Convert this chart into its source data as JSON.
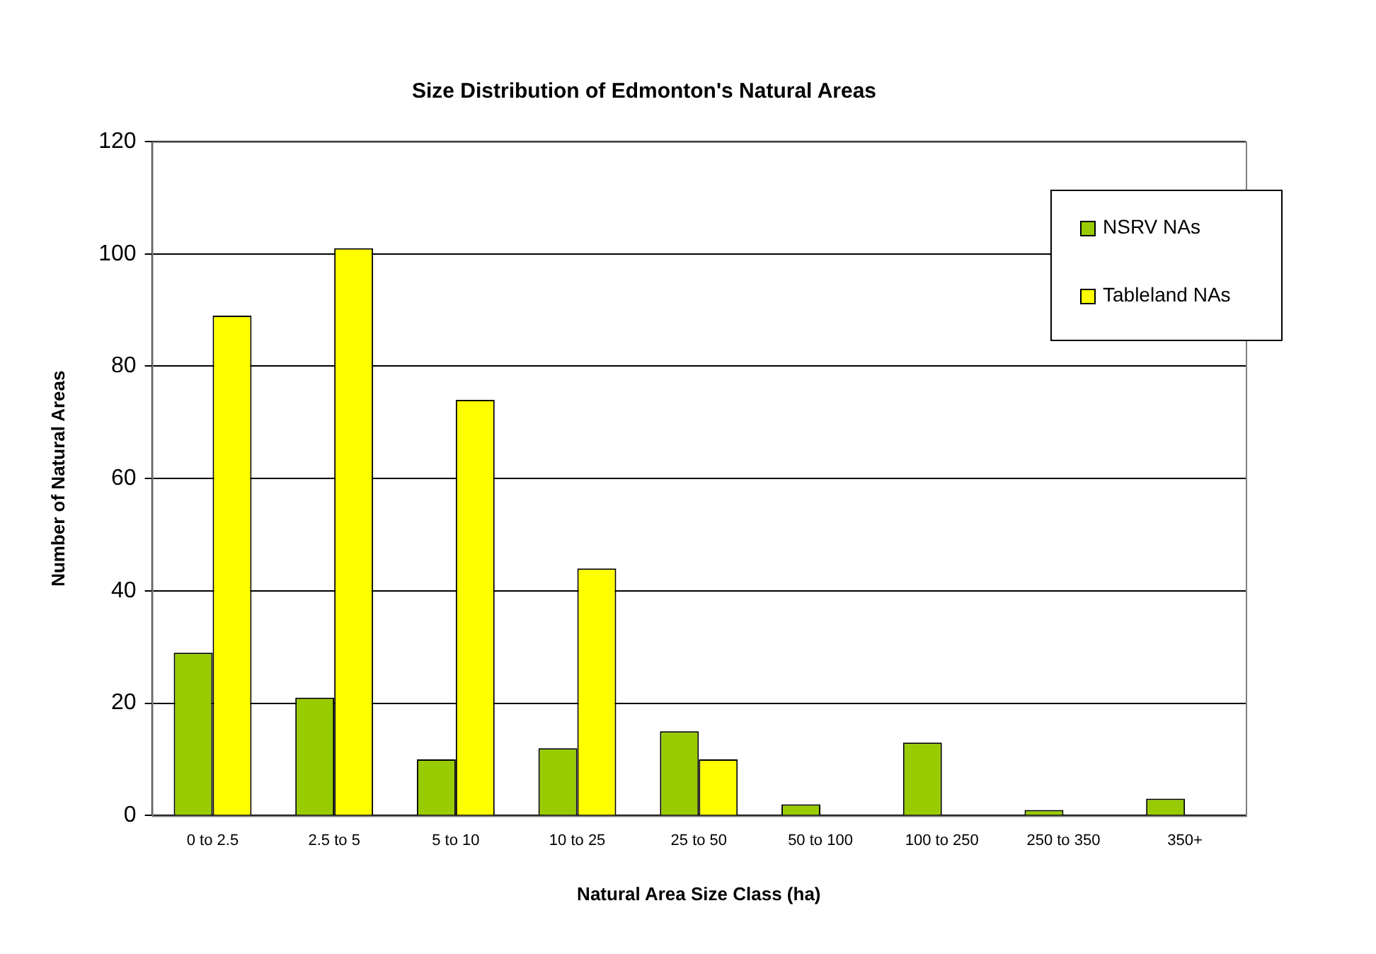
{
  "chart_data": {
    "type": "bar",
    "title": "Size Distribution of Edmonton's Natural Areas",
    "xlabel": "Natural Area Size Class (ha)",
    "ylabel": "Number of Natural Areas",
    "categories": [
      "0 to 2.5",
      "2.5 to 5",
      "5 to 10",
      "10 to 25",
      "25 to 50",
      "50 to 100",
      "100 to 250",
      "250 to 350",
      "350+"
    ],
    "series": [
      {
        "name": "NSRV NAs",
        "color": "#99cc00",
        "values": [
          29,
          21,
          10,
          12,
          15,
          2,
          13,
          1,
          3
        ]
      },
      {
        "name": "Tableland NAs",
        "color": "#ffff00",
        "values": [
          89,
          101,
          74,
          44,
          10,
          0,
          0,
          0,
          0
        ]
      }
    ],
    "ylim": [
      0,
      120
    ],
    "yticks": [
      0,
      20,
      40,
      60,
      80,
      100,
      120
    ],
    "grid": "y",
    "legend": "top right"
  }
}
